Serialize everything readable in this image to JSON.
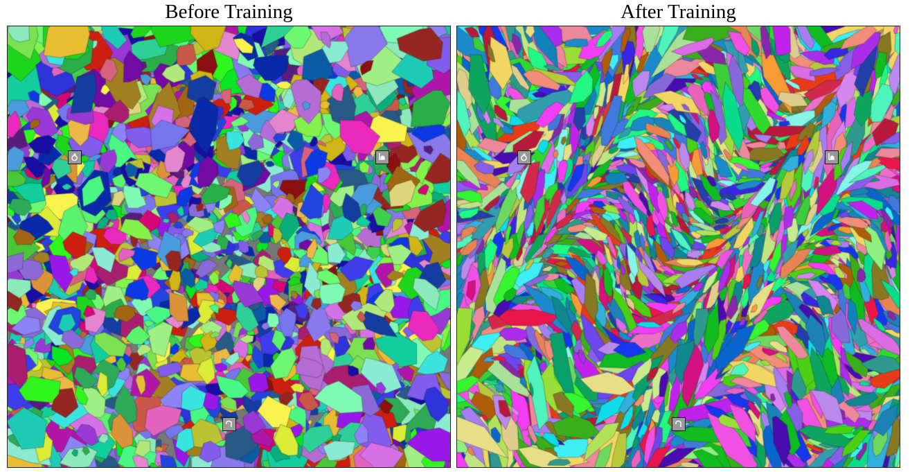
{
  "panels": [
    {
      "title": "Before Training",
      "style": "coarse-polygons",
      "markers": [
        {
          "icon": "ring-pin-icon"
        },
        {
          "icon": "droplet-icon"
        },
        {
          "icon": "hook-arrow-icon"
        }
      ]
    },
    {
      "title": "After Training",
      "style": "fine-swirls",
      "markers": [
        {
          "icon": "ring-pin-icon"
        },
        {
          "icon": "droplet-icon"
        },
        {
          "icon": "hook-arrow-icon"
        }
      ]
    }
  ]
}
